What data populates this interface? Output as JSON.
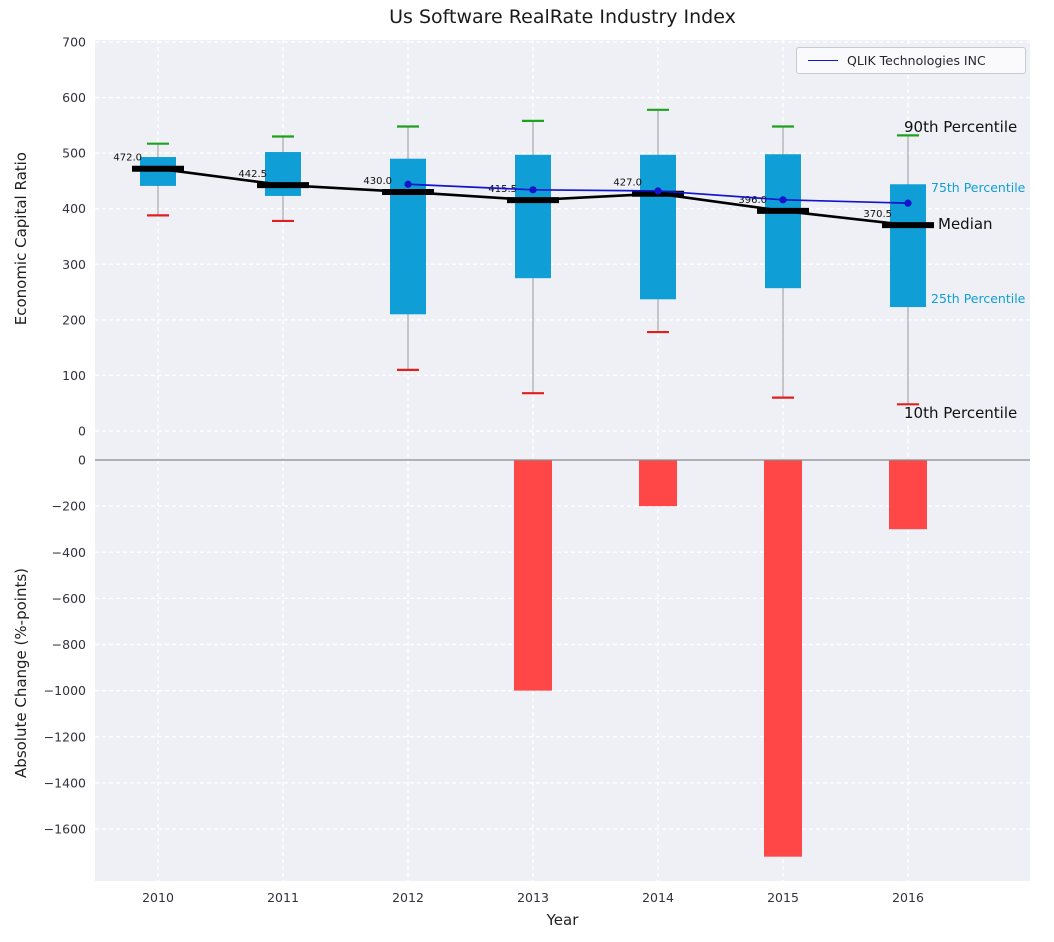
{
  "title": "Us Software RealRate Industry Index",
  "legend": {
    "qlik_label": "QLIK Technologies INC"
  },
  "axes": {
    "top_ylabel": "Economic Capital Ratio",
    "bottom_ylabel": "Absolute Change (%-points)",
    "xlabel": "Year"
  },
  "annotations": {
    "p90_label": "90th Percentile",
    "p75_label": "75th Percentile",
    "median_label": "Median",
    "p25_label": "25th Percentile",
    "p10_label": "10th Percentile"
  },
  "colors": {
    "box_fill": "#0f9ed6",
    "p90_cap": "#1fa11f",
    "p10_cap": "#e02020",
    "median": "#000000",
    "qlik_line": "#1414cc",
    "bar_fill": "#ff4747",
    "plot_bg": "#eef0f5",
    "grid": "#ffffff",
    "whisker": "#999999",
    "zero_line": "#8a8a8a",
    "tick_text": "#32323e",
    "label_text": "#111111"
  },
  "chart_data": [
    {
      "type": "box",
      "title": "Us Software RealRate Industry Index",
      "ylabel": "Economic Capital Ratio",
      "xlabel": "Year",
      "categories": [
        "2010",
        "2011",
        "2012",
        "2013",
        "2014",
        "2015",
        "2016"
      ],
      "ylim": [
        0,
        700
      ],
      "yticks": [
        0,
        100,
        200,
        300,
        400,
        500,
        600,
        700
      ],
      "grid": true,
      "legend_position": "upper right",
      "series": [
        {
          "name": "90th Percentile",
          "values": [
            517,
            530,
            548,
            558,
            578,
            548,
            532
          ]
        },
        {
          "name": "75th Percentile",
          "values": [
            493,
            502,
            490,
            497,
            497,
            498,
            444
          ]
        },
        {
          "name": "Median",
          "values": [
            472.0,
            442.5,
            430.0,
            415.5,
            427.0,
            396.0,
            370.5
          ]
        },
        {
          "name": "25th Percentile",
          "values": [
            441,
            423,
            210,
            275,
            237,
            257,
            223
          ]
        },
        {
          "name": "10th Percentile",
          "values": [
            388,
            378,
            110,
            68,
            178,
            60,
            48
          ]
        },
        {
          "name": "QLIK Technologies INC",
          "values": [
            null,
            null,
            444,
            434,
            432,
            416,
            410
          ]
        }
      ],
      "median_labels": [
        "472.0",
        "442.5",
        "430.0",
        "415.5",
        "427.0",
        "396.0",
        "370.5"
      ]
    },
    {
      "type": "bar",
      "ylabel": "Absolute Change (%-points)",
      "categories": [
        "2010",
        "2011",
        "2012",
        "2013",
        "2014",
        "2015",
        "2016"
      ],
      "values": [
        0,
        0,
        0,
        -1000,
        -200,
        -1720,
        -300
      ],
      "yticks": [
        0,
        -200,
        -400,
        -600,
        -800,
        -1000,
        -1200,
        -1400,
        -1600
      ],
      "ylim": [
        -1825,
        115
      ],
      "grid": true
    }
  ]
}
